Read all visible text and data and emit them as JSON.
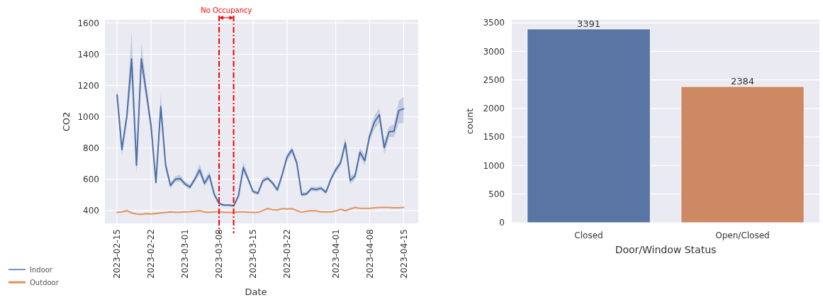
{
  "chart_data": [
    {
      "type": "line",
      "xlabel": "Date",
      "ylabel": "CO2",
      "annotations": [
        "No Occupancy"
      ],
      "xlim": [
        "2023-02-12T12:00",
        "2023-04-18"
      ],
      "ylim": [
        318,
        1620
      ],
      "xticks": [
        "2023-02-15",
        "2023-02-22",
        "2023-03-01",
        "2023-03-08",
        "2023-03-15",
        "2023-03-22",
        "2023-04-01",
        "2023-04-08",
        "2023-04-15"
      ],
      "yticks": [
        400,
        600,
        800,
        1000,
        1200,
        1400,
        1600
      ],
      "grid": true,
      "legend": "bottom left",
      "marker": "none",
      "ref_lines": [
        {
          "axis": "x",
          "value": "2023-03-08",
          "color": "#ff0000",
          "line_style": "dashed"
        },
        {
          "axis": "x",
          "value": "2023-03-11",
          "color": "#ff0000",
          "line_style": "dashed"
        }
      ],
      "x": [
        "2023-02-15",
        "2023-02-16",
        "2023-02-17",
        "2023-02-18",
        "2023-02-19",
        "2023-02-20",
        "2023-02-21",
        "2023-02-22",
        "2023-02-23",
        "2023-02-24",
        "2023-02-25",
        "2023-02-26",
        "2023-02-27",
        "2023-02-28",
        "2023-03-01",
        "2023-03-02",
        "2023-03-03",
        "2023-03-04",
        "2023-03-05",
        "2023-03-06",
        "2023-03-07",
        "2023-03-08",
        "2023-03-09",
        "2023-03-10",
        "2023-03-11",
        "2023-03-12",
        "2023-03-13",
        "2023-03-14",
        "2023-03-15",
        "2023-03-16",
        "2023-03-17",
        "2023-03-18",
        "2023-03-19",
        "2023-03-20",
        "2023-03-21",
        "2023-03-22",
        "2023-03-23",
        "2023-03-24",
        "2023-03-25",
        "2023-03-26",
        "2023-03-27",
        "2023-03-28",
        "2023-03-29",
        "2023-03-30",
        "2023-03-31",
        "2023-04-01",
        "2023-04-02",
        "2023-04-03",
        "2023-04-04",
        "2023-04-05",
        "2023-04-06",
        "2023-04-07",
        "2023-04-08",
        "2023-04-09",
        "2023-04-10",
        "2023-04-11",
        "2023-04-12",
        "2023-04-13",
        "2023-04-14",
        "2023-04-15"
      ],
      "series": [
        {
          "name": "Indoor",
          "color": "#4c6fa8",
          "values": [
            1140,
            790,
            1000,
            1370,
            690,
            1370,
            1160,
            940,
            580,
            1065,
            690,
            560,
            600,
            605,
            570,
            550,
            600,
            660,
            575,
            625,
            505,
            445,
            435,
            435,
            430,
            495,
            675,
            600,
            522,
            510,
            590,
            607,
            577,
            532,
            630,
            743,
            788,
            705,
            502,
            507,
            540,
            535,
            543,
            517,
            600,
            660,
            705,
            833,
            592,
            622,
            773,
            720,
            878,
            968,
            1013,
            803,
            904,
            908,
            1039,
            1051
          ],
          "lower": [
            1100,
            750,
            960,
            1250,
            640,
            1300,
            1110,
            900,
            560,
            1020,
            660,
            545,
            585,
            585,
            555,
            535,
            585,
            630,
            555,
            600,
            490,
            435,
            428,
            428,
            422,
            480,
            645,
            585,
            510,
            500,
            575,
            595,
            565,
            520,
            610,
            720,
            765,
            685,
            490,
            495,
            525,
            522,
            530,
            505,
            585,
            640,
            685,
            800,
            570,
            600,
            745,
            690,
            845,
            920,
            965,
            760,
            870,
            870,
            960,
            960
          ],
          "upper": [
            1190,
            830,
            1040,
            1550,
            740,
            1470,
            1210,
            980,
            600,
            1150,
            720,
            580,
            620,
            630,
            585,
            565,
            620,
            700,
            600,
            650,
            520,
            455,
            442,
            442,
            440,
            510,
            710,
            620,
            535,
            522,
            610,
            620,
            590,
            545,
            650,
            765,
            810,
            725,
            515,
            520,
            555,
            550,
            557,
            530,
            615,
            680,
            725,
            870,
            615,
            645,
            800,
            755,
            905,
            1010,
            1055,
            840,
            940,
            950,
            1100,
            1130
          ]
        },
        {
          "name": "Outdoor",
          "color": "#e0925c",
          "values": [
            388,
            392,
            400,
            385,
            378,
            376,
            380,
            378,
            382,
            385,
            388,
            392,
            390,
            390,
            392,
            393,
            395,
            400,
            390,
            390,
            392,
            392,
            390,
            388,
            388,
            392,
            392,
            390,
            388,
            388,
            400,
            412,
            405,
            403,
            412,
            410,
            412,
            400,
            390,
            395,
            400,
            398,
            392,
            392,
            392,
            397,
            408,
            400,
            410,
            420,
            414,
            414,
            414,
            418,
            420,
            420,
            420,
            418,
            418,
            420
          ]
        }
      ]
    },
    {
      "type": "bar",
      "xlabel": "Door/Window Status",
      "ylabel": "count",
      "categories": [
        "Closed",
        "Open/Closed"
      ],
      "values": [
        3391,
        2384
      ],
      "colors": [
        "#5875a4",
        "#cc8963"
      ],
      "ylim": [
        0,
        3550
      ],
      "yticks": [
        0,
        500,
        1000,
        1500,
        2000,
        2500,
        3000,
        3500
      ],
      "grid": "y",
      "data_labels": true
    }
  ]
}
